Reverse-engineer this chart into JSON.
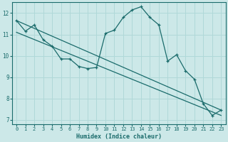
{
  "xlabel": "Humidex (Indice chaleur)",
  "ylabel": "",
  "xlim": [
    -0.5,
    23.5
  ],
  "ylim": [
    6.8,
    12.5
  ],
  "yticks": [
    7,
    8,
    9,
    10,
    11,
    12
  ],
  "xticks": [
    0,
    1,
    2,
    3,
    4,
    5,
    6,
    7,
    8,
    9,
    10,
    11,
    12,
    13,
    14,
    15,
    16,
    17,
    18,
    19,
    20,
    21,
    22,
    23
  ],
  "background_color": "#cce8e8",
  "grid_color": "#b0d8d8",
  "line_color": "#1a6b6b",
  "line1_x": [
    0,
    1,
    2,
    3,
    4,
    5,
    6,
    7,
    8,
    9,
    10,
    11,
    12,
    13,
    14,
    15,
    16,
    17,
    18,
    19,
    20,
    21,
    22,
    23
  ],
  "line1_y": [
    11.65,
    11.15,
    11.45,
    10.75,
    10.45,
    9.85,
    9.85,
    9.5,
    9.4,
    9.45,
    11.05,
    11.2,
    11.8,
    12.15,
    12.3,
    11.8,
    11.45,
    9.75,
    10.05,
    9.3,
    8.9,
    7.75,
    7.2,
    7.45
  ],
  "line2_x": [
    0,
    23
  ],
  "line2_y": [
    11.65,
    7.45
  ],
  "line3_x": [
    0,
    23
  ],
  "line3_y": [
    11.1,
    7.2
  ]
}
